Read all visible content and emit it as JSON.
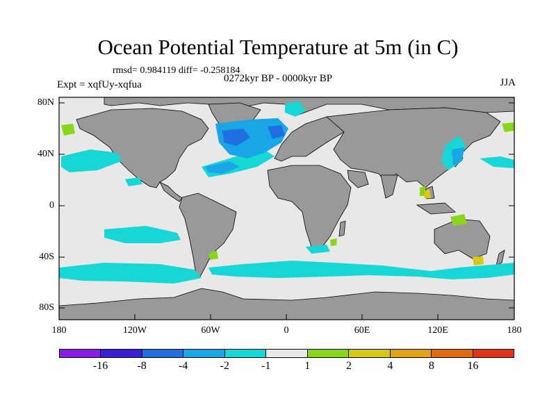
{
  "title": "Ocean Potential Temperature at 5m (in C)",
  "stats": "rmsd= 0.984119 diff= -0.258184",
  "period": "0272kyr BP - 0000kyr BP",
  "expt": "Expt = xqfUy-xqfua",
  "season": "JJA",
  "y_axis_labels": [
    "80N",
    "40N",
    "0",
    "40S",
    "80S"
  ],
  "x_axis_labels": [
    "180",
    "120W",
    "60W",
    "0",
    "60E",
    "120E",
    "180"
  ],
  "colorbar": {
    "colors": [
      "#8a1ce8",
      "#3b1fd6",
      "#1f6fe0",
      "#18a6e6",
      "#17d6d6",
      "#e8e8e8",
      "#88d61a",
      "#d6c817",
      "#e0a316",
      "#e06c12",
      "#e0341a"
    ],
    "labels": [
      "-16",
      "-8",
      "-4",
      "-2",
      "-1",
      "1",
      "2",
      "4",
      "8",
      "16"
    ]
  },
  "legend_colors": {
    "land": "#999999",
    "ocean_neutral": "#e8e8e8",
    "cool": "#17d6d6",
    "cooler": "#18a6e6",
    "coolest": "#1f6fe0",
    "warm": "#88d61a",
    "warmer": "#d6c817"
  }
}
